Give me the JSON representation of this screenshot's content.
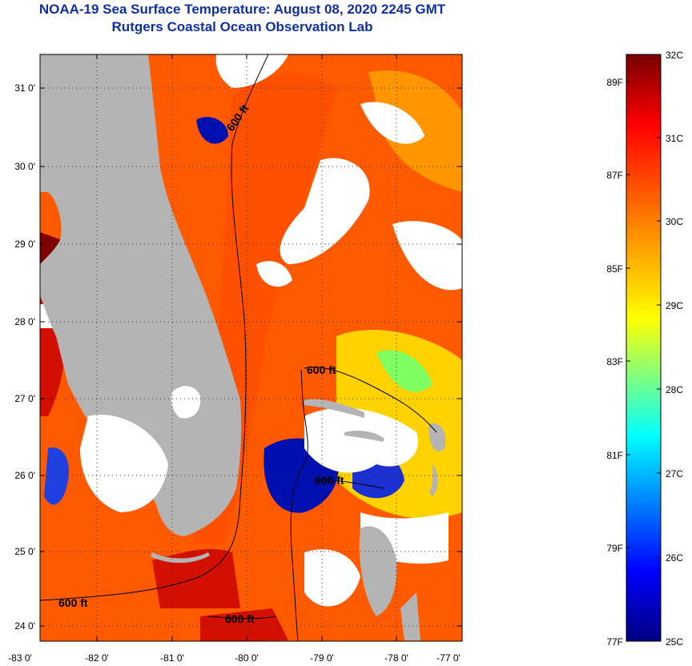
{
  "title": {
    "line1": "NOAA-19 Sea Surface Temperature:  August 08, 2020 2245 GMT",
    "line2": "Rutgers Coastal Ocean Observation Lab"
  },
  "map": {
    "lat_ticks": [
      "31 0'",
      "30 0'",
      "29 0'",
      "28 0'",
      "27 0'",
      "26 0'",
      "25 0'",
      "24 0'"
    ],
    "lon_ticks": [
      "-83 0'",
      "-82 0'",
      "-81 0'",
      "-80 0'",
      "-79 0'",
      "-78 0'",
      "-77 0'"
    ],
    "contour_labels": [
      "600 ft",
      "600 ft",
      "600 ft",
      "600 ft",
      "600 ft"
    ],
    "colors": {
      "land": "#b4b4b4",
      "cloud": "#ffffff",
      "warm": "#ff5a00",
      "hot": "#d20f00",
      "very_hot": "#800000",
      "cool": "#ffd200",
      "cold": "#0010b0"
    }
  },
  "colorbar": {
    "labels_right": [
      "32C",
      "31C",
      "30C",
      "29C",
      "28C",
      "27C",
      "26C",
      "25C"
    ],
    "labels_left": [
      "89F",
      "87F",
      "85F",
      "83F",
      "81F",
      "79F",
      "77F"
    ],
    "min_c": 25,
    "max_c": 32
  }
}
